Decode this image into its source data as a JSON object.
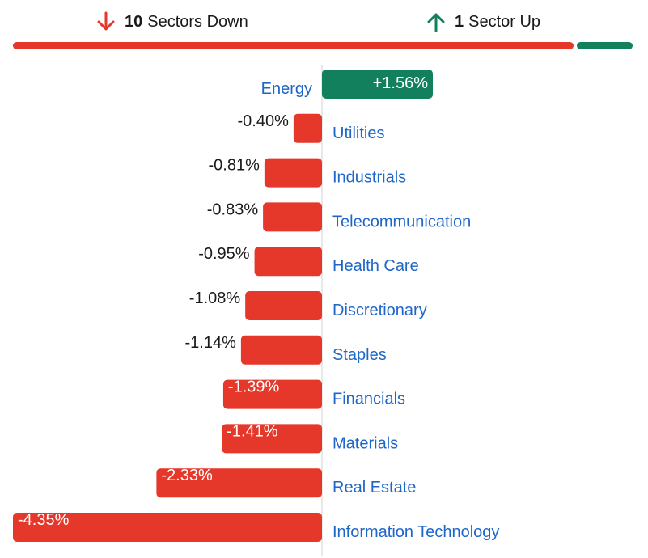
{
  "summary": {
    "down_count": "10",
    "down_label": "Sectors Down",
    "up_count": "1",
    "up_label": "Sector Up"
  },
  "colors": {
    "down": "#e5372a",
    "up": "#12805c",
    "link": "#1f66c9",
    "axis": "#d0d0d0"
  },
  "chart_data": {
    "type": "bar",
    "orientation": "horizontal",
    "categories": [
      "Energy",
      "Utilities",
      "Industrials",
      "Telecommunication",
      "Health Care",
      "Discretionary",
      "Staples",
      "Financials",
      "Materials",
      "Real Estate",
      "Information Technology"
    ],
    "values": [
      1.56,
      -0.4,
      -0.81,
      -0.83,
      -0.95,
      -1.08,
      -1.14,
      -1.39,
      -1.41,
      -2.33,
      -4.35
    ],
    "value_labels": [
      "+1.56%",
      "-0.40%",
      "-0.81%",
      "-0.83%",
      "-0.95%",
      "-1.08%",
      "-1.14%",
      "-1.39%",
      "-1.41%",
      "-2.33%",
      "-4.35%"
    ],
    "xlim": [
      -4.35,
      1.56
    ],
    "grid": false,
    "legend": "none"
  }
}
